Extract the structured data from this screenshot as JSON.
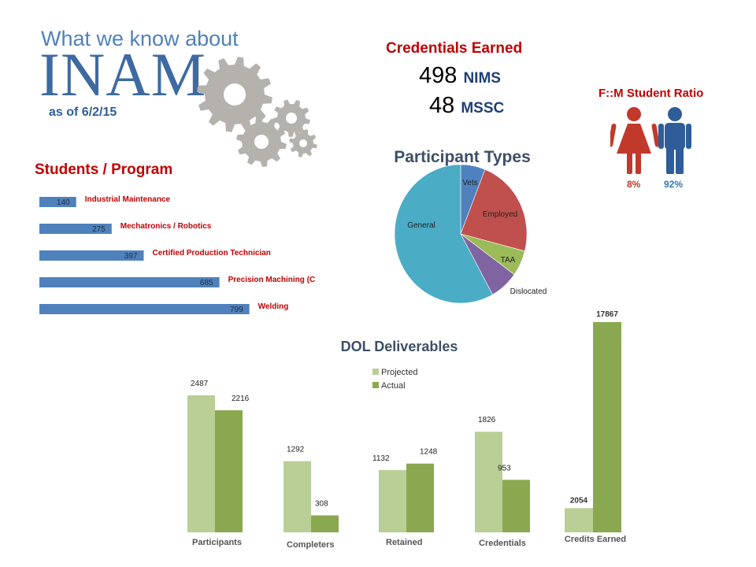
{
  "header": {
    "intro": "What we know about",
    "logo": "INAM",
    "as_of": "as of 6/2/15"
  },
  "credentials": {
    "title": "Credentials Earned",
    "items": [
      {
        "value": "498",
        "unit": "NIMS"
      },
      {
        "value": "48",
        "unit": "MSSC"
      }
    ]
  },
  "ratio": {
    "title": "F::M Student Ratio",
    "female_pct": "8%",
    "male_pct": "92%",
    "female_color": "#c0392b",
    "male_color": "#2e5d99"
  },
  "chart_data": [
    {
      "type": "bar",
      "orientation": "horizontal",
      "title": "Students / Program",
      "categories": [
        "Industrial Maintenance",
        "Mechatronics / Robotics",
        "Certified Production Technician",
        "Precision Machining (CNC)",
        "Welding"
      ],
      "values": [
        140,
        275,
        397,
        685,
        799
      ],
      "xlim": [
        0,
        800
      ],
      "color": "#4f81bd",
      "label_color": "#c00000",
      "grid": false
    },
    {
      "type": "pie",
      "title": "Participant Types",
      "labels": [
        "Vets",
        "Employed",
        "TAA",
        "Dislocated",
        "General"
      ],
      "values": [
        6,
        23,
        6,
        7,
        58
      ],
      "colors": [
        "#4f81bd",
        "#c0504d",
        "#9bbb59",
        "#8064a2",
        "#4bacc6"
      ]
    },
    {
      "type": "bar",
      "title": "DOL Deliverables",
      "categories": [
        "Participants",
        "Completers",
        "Retained",
        "Credentials"
      ],
      "series": [
        {
          "name": "Projected",
          "values": [
            2487,
            1292,
            1132,
            1826
          ],
          "color": "#b9cf96"
        },
        {
          "name": "Actual",
          "values": [
            2216,
            308,
            1248,
            953
          ],
          "color": "#8aa84f"
        }
      ],
      "legend": "top",
      "grid": false
    },
    {
      "type": "bar",
      "categories": [
        "Credits Earned"
      ],
      "series": [
        {
          "values": [
            2054
          ],
          "color": "#b9cf96"
        },
        {
          "values": [
            17867
          ],
          "color": "#8aa84f"
        }
      ],
      "grid": false
    }
  ]
}
